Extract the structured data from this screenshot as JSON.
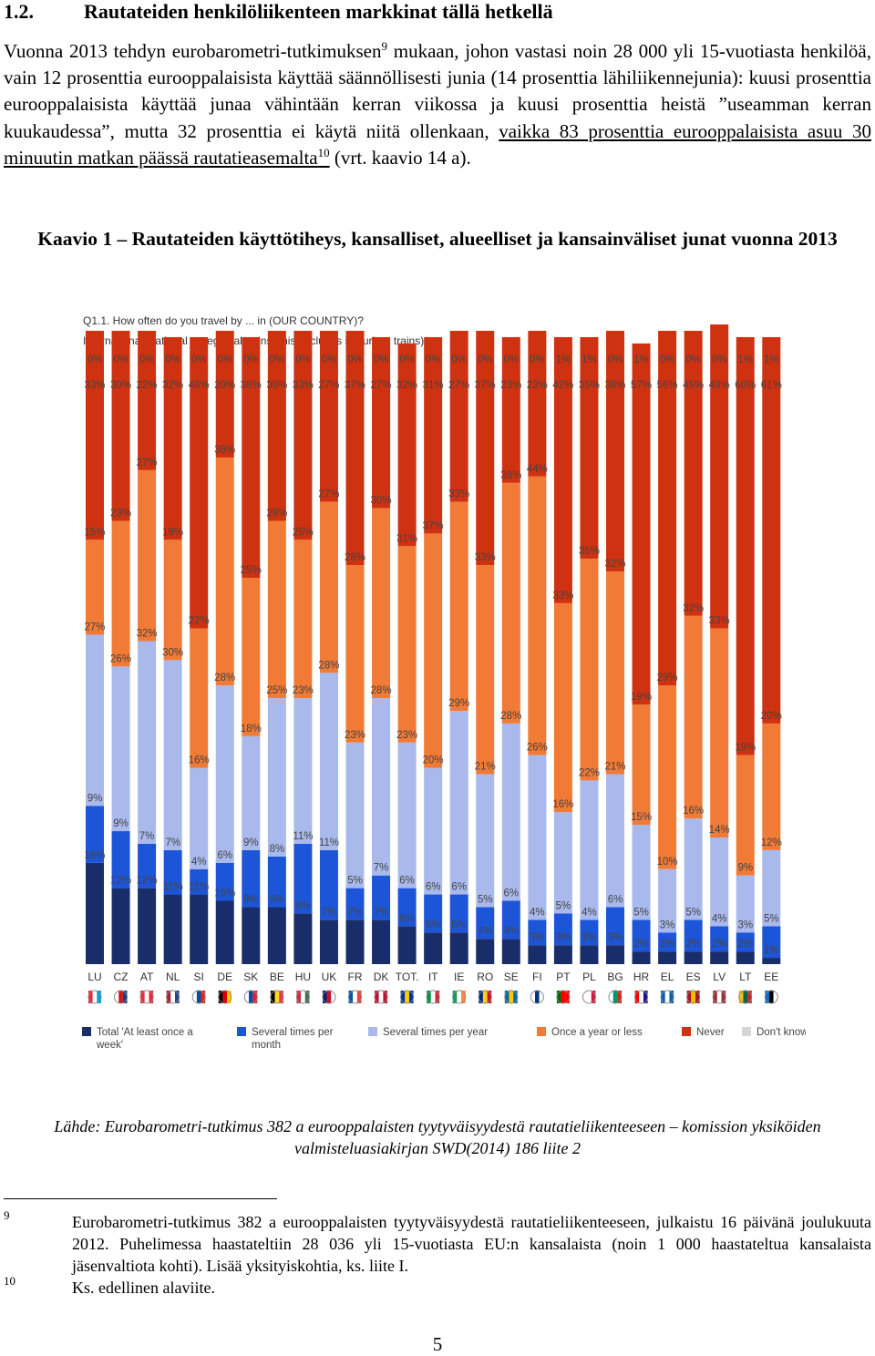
{
  "section": {
    "number": "1.2.",
    "title": "Rautateiden henkilöliikenteen markkinat tällä hetkellä"
  },
  "paragraph": {
    "part1": "Vuonna 2013 tehdyn eurobarometri-tutkimuksen",
    "ref1": "9",
    "part2": " mukaan, johon vastasi noin 28 000 yli 15-vuotiasta henkilöä, vain 12 prosenttia eurooppalaisista käyttää säännöllisesti junia (14 prosenttia lähiliikennejunia): kuusi prosenttia eurooppalaisista käyttää junaa vähintään kerran viikossa ja kuusi prosenttia heistä ”useamman kerran kuukaudessa”, mutta 32 prosenttia ei käytä niitä ollenkaan, ",
    "underlined": "vaikka 83 prosenttia eurooppalaisista asuu 30 minuutin matkan päässä rautatieasemalta",
    "ref2": "10",
    "part3": " (vrt. kaavio 14 a)."
  },
  "figure_caption": "Kaavio 1 – Rautateiden käyttötiheys, kansalliset, alueelliset ja kansainväliset junat vuonna 2013",
  "chart_data": {
    "type": "bar",
    "stacked": true,
    "question": "Q1.1. How often do you travel by ... in (OUR COUNTRY)?",
    "subtitle": "International, national or regional trains (this excludes suburban trains)",
    "categories": [
      "LU",
      "CZ",
      "AT",
      "NL",
      "SI",
      "DE",
      "SK",
      "BE",
      "HU",
      "UK",
      "FR",
      "DK",
      "TOT.",
      "IT",
      "IE",
      "RO",
      "SE",
      "FI",
      "PT",
      "PL",
      "BG",
      "HR",
      "EL",
      "ES",
      "LV",
      "LT",
      "EE"
    ],
    "series": [
      {
        "name": "Total 'At least once a week'",
        "color": "#1a2d6b",
        "values": [
          16,
          12,
          12,
          11,
          11,
          10,
          9,
          9,
          8,
          7,
          7,
          7,
          6,
          5,
          5,
          4,
          4,
          3,
          3,
          3,
          3,
          2,
          2,
          2,
          2,
          2,
          1
        ]
      },
      {
        "name": "Several times per month",
        "color": "#1d55d8",
        "values": [
          9,
          9,
          7,
          7,
          4,
          6,
          9,
          8,
          11,
          11,
          5,
          7,
          6,
          6,
          6,
          5,
          6,
          4,
          5,
          4,
          6,
          5,
          3,
          5,
          4,
          3,
          5
        ]
      },
      {
        "name": "Several times per year",
        "color": "#a9b9ec",
        "values": [
          27,
          26,
          32,
          30,
          16,
          28,
          18,
          25,
          23,
          28,
          23,
          28,
          23,
          20,
          29,
          21,
          28,
          26,
          16,
          22,
          21,
          15,
          10,
          16,
          14,
          9,
          12
        ]
      },
      {
        "name": "Once a year or less",
        "color": "#f07a36",
        "values": [
          15,
          23,
          27,
          19,
          22,
          36,
          25,
          28,
          25,
          27,
          28,
          30,
          31,
          37,
          33,
          33,
          38,
          44,
          33,
          35,
          32,
          19,
          29,
          32,
          33,
          19,
          20
        ]
      },
      {
        "name": "Never",
        "color": "#cf3210",
        "values": [
          33,
          30,
          22,
          32,
          46,
          20,
          38,
          30,
          33,
          27,
          37,
          27,
          32,
          31,
          27,
          37,
          23,
          23,
          42,
          35,
          38,
          57,
          56,
          45,
          48,
          66,
          61
        ]
      },
      {
        "name": "Don't know",
        "color": "#d6d6d6",
        "values": [
          0,
          0,
          0,
          0,
          0,
          0,
          0,
          0,
          0,
          0,
          0,
          0,
          0,
          0,
          0,
          0,
          0,
          0,
          1,
          1,
          0,
          1,
          0,
          0,
          0,
          1,
          1
        ]
      }
    ],
    "value_suffix": "%",
    "ylim": [
      0,
      100
    ]
  },
  "flags": {
    "LU": [
      "#ed2939",
      "#ffffff",
      "#00a1de"
    ],
    "CZ": [
      "#ffffff",
      "#d7141a",
      "#11457e"
    ],
    "AT": [
      "#ed2939",
      "#ffffff",
      "#ed2939"
    ],
    "NL": [
      "#ae1c28",
      "#ffffff",
      "#21468b"
    ],
    "SI": [
      "#ffffff",
      "#0050a0",
      "#ed1c24"
    ],
    "DE": [
      "#000000",
      "#dd0000",
      "#ffce00"
    ],
    "SK": [
      "#ffffff",
      "#0b4ea2",
      "#ee1c25"
    ],
    "BE": [
      "#000000",
      "#fdda24",
      "#ef3340"
    ],
    "HU": [
      "#cd2a3e",
      "#ffffff",
      "#436f4d"
    ],
    "UK": [
      "#012169",
      "#c8102e",
      "#ffffff"
    ],
    "FR": [
      "#0055a4",
      "#ffffff",
      "#ef4135"
    ],
    "DK": [
      "#c8102e",
      "#ffffff",
      "#c8102e"
    ],
    "TOT.": [
      "#003399",
      "#ffcc00",
      "#003399"
    ],
    "IT": [
      "#009246",
      "#ffffff",
      "#ce2b37"
    ],
    "IE": [
      "#169b62",
      "#ffffff",
      "#ff883e"
    ],
    "RO": [
      "#002b7f",
      "#fcd116",
      "#ce1126"
    ],
    "SE": [
      "#006aa7",
      "#fecc00",
      "#006aa7"
    ],
    "FI": [
      "#ffffff",
      "#003580",
      "#ffffff"
    ],
    "PT": [
      "#006600",
      "#ff0000",
      "#ff0000"
    ],
    "PL": [
      "#ffffff",
      "#ffffff",
      "#dc143c"
    ],
    "BG": [
      "#ffffff",
      "#00966e",
      "#d62612"
    ],
    "HR": [
      "#ff0000",
      "#ffffff",
      "#171796"
    ],
    "EL": [
      "#0d5eaf",
      "#ffffff",
      "#0d5eaf"
    ],
    "ES": [
      "#aa151b",
      "#f1bf00",
      "#aa151b"
    ],
    "LV": [
      "#9e3039",
      "#ffffff",
      "#9e3039"
    ],
    "LT": [
      "#fdb913",
      "#006a44",
      "#c1272d"
    ],
    "EE": [
      "#0072ce",
      "#000000",
      "#ffffff"
    ]
  },
  "legend": [
    {
      "label": "Total 'At least once a week'",
      "color": "#1a2d6b"
    },
    {
      "label": "Several times per month",
      "color": "#1d55d8"
    },
    {
      "label": "Several times per year",
      "color": "#a9b9ec"
    },
    {
      "label": "Once a year or less",
      "color": "#f07a36"
    },
    {
      "label": "Never",
      "color": "#cf3210"
    },
    {
      "label": "Don't know",
      "color": "#d6d6d6"
    }
  ],
  "source": "Lähde: Eurobarometri-tutkimus 382 a eurooppalaisten tyytyväisyydestä rautatieliikenteeseen – komission yksiköiden valmisteluasiakirjan SWD(2014) 186 liite 2",
  "footnotes": [
    {
      "number": "9",
      "text": "Eurobarometri-tutkimus 382 a eurooppalaisten tyytyväisyydestä rautatieliikenteeseen, julkaistu 16 päivänä joulukuuta 2012. Puhelimessa haastateltiin 28 036 yli 15-vuotiasta EU:n kansalaista (noin 1 000 haastateltua kansalaista jäsenvaltiota kohti). Lisää yksityiskohtia, ks. liite I."
    },
    {
      "number": "10",
      "text": "Ks. edellinen alaviite."
    }
  ],
  "page_number": "5"
}
